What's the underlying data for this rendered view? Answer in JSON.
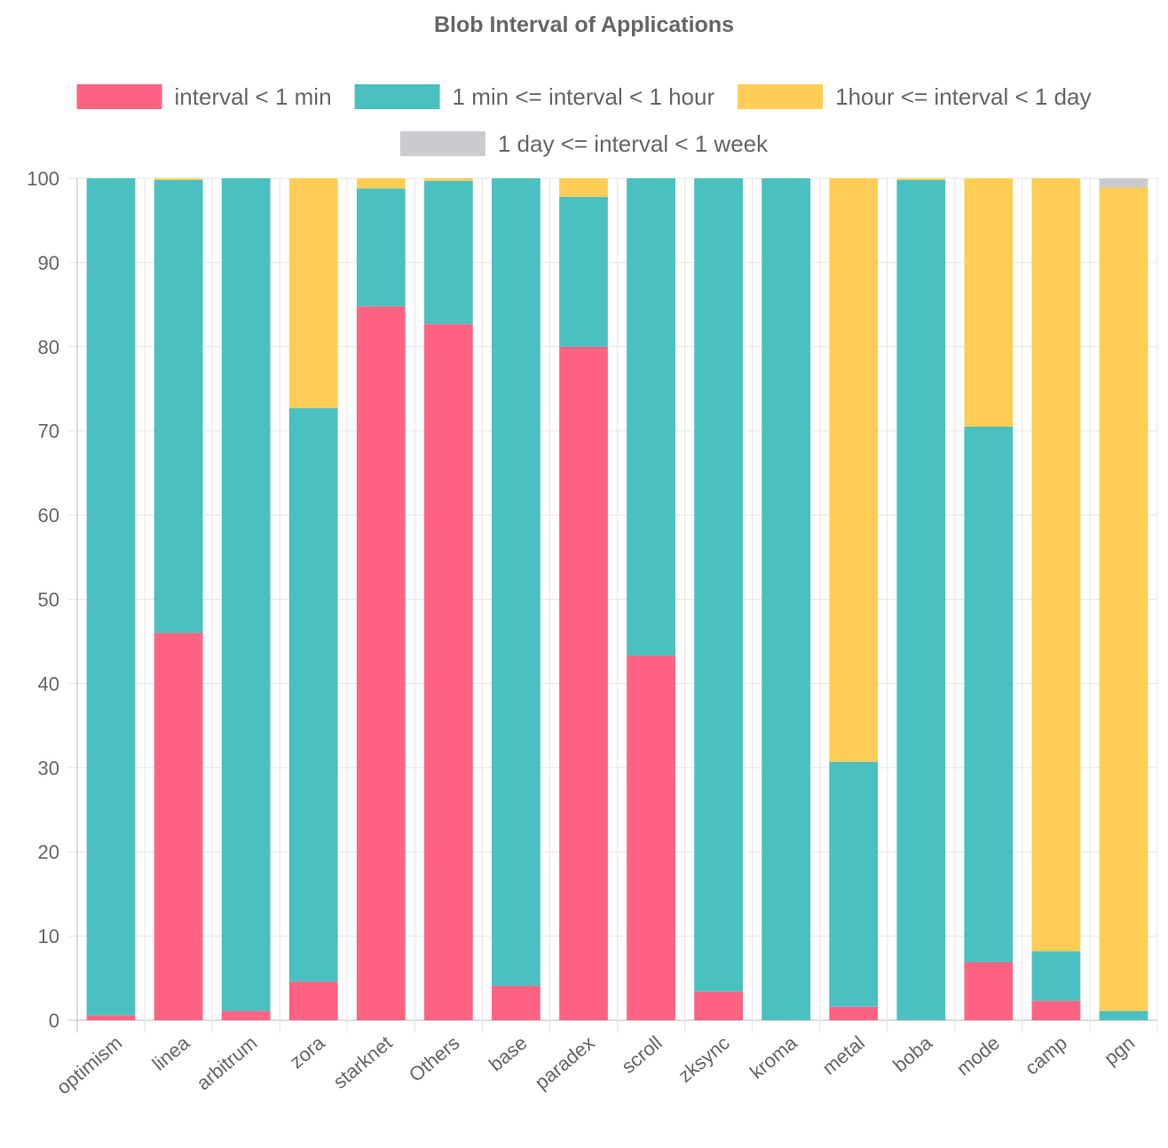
{
  "chart_data": {
    "type": "bar",
    "stacked": true,
    "title": "Blob Interval of Applications",
    "xlabel": "",
    "ylabel": "",
    "ylim": [
      0,
      100
    ],
    "yticks": [
      0,
      10,
      20,
      30,
      40,
      50,
      60,
      70,
      80,
      90,
      100
    ],
    "grid": true,
    "legend_position": "top",
    "categories": [
      "optimism",
      "linea",
      "arbitrum",
      "zora",
      "starknet",
      "Others",
      "base",
      "paradex",
      "scroll",
      "zksync",
      "kroma",
      "metal",
      "boba",
      "mode",
      "camp",
      "pgn"
    ],
    "series": [
      {
        "name": "interval < 1 min",
        "color": "#ff6384",
        "values": [
          0.6,
          46.0,
          1.1,
          4.6,
          84.8,
          82.7,
          4.1,
          80.0,
          43.3,
          3.4,
          0.0,
          1.6,
          0.0,
          6.9,
          2.3,
          0.0
        ]
      },
      {
        "name": "1 min <= interval < 1 hour",
        "color": "#4bc0c0",
        "values": [
          99.4,
          53.8,
          98.9,
          68.1,
          14.0,
          17.0,
          95.9,
          17.8,
          56.7,
          96.6,
          100.0,
          29.1,
          99.8,
          63.6,
          5.9,
          1.1
        ]
      },
      {
        "name": "1hour <= interval < 1 day",
        "color": "#ffcd56",
        "values": [
          0.0,
          0.2,
          0.0,
          27.3,
          1.2,
          0.3,
          0.0,
          2.2,
          0.0,
          0.0,
          0.0,
          69.3,
          0.2,
          29.5,
          91.8,
          97.8
        ]
      },
      {
        "name": "1 day <= interval < 1 week",
        "color": "#c9cbcf",
        "values": [
          0.0,
          0.0,
          0.0,
          0.0,
          0.0,
          0.0,
          0.0,
          0.0,
          0.0,
          0.0,
          0.0,
          0.0,
          0.0,
          0.0,
          0.0,
          1.1
        ]
      }
    ]
  }
}
